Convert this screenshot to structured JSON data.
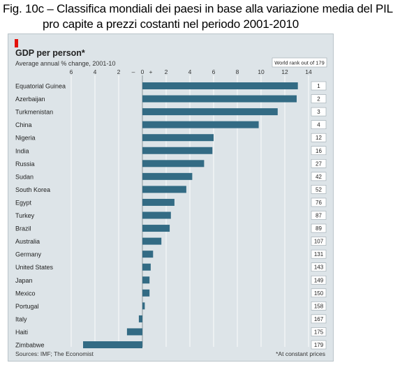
{
  "figure_caption": {
    "line1": "Fig. 10c – Classifica mondiali dei paesi in base alla variazione media del PIL",
    "line2": "pro capite a prezzi costanti nel periodo 2001-2010"
  },
  "chart_data": {
    "type": "bar",
    "orientation": "horizontal",
    "title": "GDP per person*",
    "subtitle": "Average annual % change, 2001-10",
    "rank_header": "World rank out of 179",
    "source": "Sources: IMF; The Economist",
    "footnote": "*At constant prices",
    "xlim": [
      -6,
      14
    ],
    "ticks": [
      -6,
      -4,
      -2,
      0,
      2,
      4,
      6,
      8,
      10,
      12,
      14
    ],
    "tick_labels": [
      "6",
      "4",
      "2",
      "–",
      "0",
      "+",
      "2",
      "4",
      "6",
      "8",
      "10",
      "12",
      "14"
    ],
    "grid": true,
    "bar_color": "#336b84",
    "categories": [
      "Equatorial Guinea",
      "Azerbaijan",
      "Turkmenistan",
      "China",
      "Nigeria",
      "India",
      "Russia",
      "Sudan",
      "South Korea",
      "Egypt",
      "Turkey",
      "Brazil",
      "Australia",
      "Germany",
      "United States",
      "Japan",
      "Mexico",
      "Portugal",
      "Italy",
      "Haiti",
      "Zimbabwe"
    ],
    "values": [
      13.1,
      13.0,
      11.4,
      9.8,
      6.0,
      5.9,
      5.2,
      4.2,
      3.7,
      2.7,
      2.4,
      2.3,
      1.6,
      0.9,
      0.7,
      0.6,
      0.6,
      0.2,
      -0.3,
      -1.3,
      -5.0
    ],
    "ranks": [
      "1",
      "2",
      "3",
      "4",
      "12",
      "16",
      "27",
      "42",
      "52",
      "76",
      "87",
      "89",
      "107",
      "131",
      "143",
      "149",
      "150",
      "158",
      "167",
      "175",
      "179"
    ]
  }
}
